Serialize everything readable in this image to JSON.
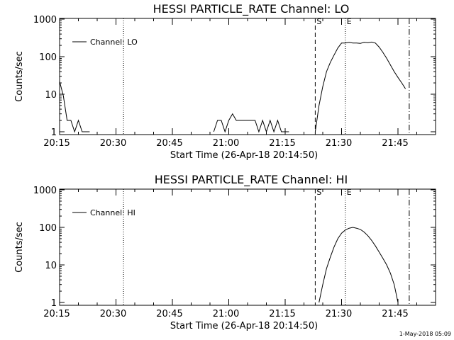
{
  "footer": {
    "timestamp": "1-May-2018 05:09"
  },
  "chart_data": [
    {
      "type": "line",
      "title": "HESSI PARTICLE_RATE Channel: LO",
      "xlabel": "Start Time (26-Apr-18 20:14:50)",
      "ylabel": "Counts/sec",
      "yscale": "log",
      "xlim": [
        "20:15",
        "21:55"
      ],
      "ylim": [
        1,
        1000
      ],
      "x_ticks": [
        "20:15",
        "20:30",
        "20:45",
        "21:00",
        "21:15",
        "21:30",
        "21:45"
      ],
      "y_ticks": [
        "1",
        "10",
        "100",
        "1000"
      ],
      "legend": {
        "position": "top-left",
        "entries": [
          "Channel: LO"
        ]
      },
      "markers": [
        {
          "label": "S",
          "time": "21:23",
          "style": "dashed"
        },
        {
          "label": "E",
          "time": "21:31",
          "style": "dotted"
        },
        {
          "label": "",
          "time": "20:32",
          "style": "dotted"
        },
        {
          "label": "",
          "time": "21:48",
          "style": "dashdot"
        }
      ],
      "series": [
        {
          "name": "Channel: LO",
          "x": [
            "20:15",
            "20:16",
            "20:17",
            "20:18",
            "20:19",
            "20:20",
            "20:21",
            "20:22",
            "20:23",
            "20:56",
            "20:57",
            "20:58",
            "20:59",
            "21:00",
            "21:01",
            "21:02",
            "21:03",
            "21:04",
            "21:05",
            "21:06",
            "21:07",
            "21:08",
            "21:09",
            "21:10",
            "21:11",
            "21:12",
            "21:13",
            "21:14",
            "21:15",
            "21:16",
            "21:23",
            "21:24",
            "21:25",
            "21:26",
            "21:27",
            "21:28",
            "21:29",
            "21:30",
            "21:31",
            "21:32",
            "21:33",
            "21:34",
            "21:35",
            "21:36",
            "21:37",
            "21:38",
            "21:39",
            "21:40",
            "21:41",
            "21:42",
            "21:43",
            "21:44",
            "21:45",
            "21:46",
            "21:47"
          ],
          "values": [
            22,
            9,
            2,
            2,
            1,
            2,
            1,
            1,
            1,
            1,
            2,
            2,
            1,
            2,
            3,
            2,
            2,
            2,
            2,
            2,
            2,
            1,
            2,
            1,
            2,
            1,
            2,
            1,
            1,
            1,
            1,
            5,
            16,
            40,
            70,
            110,
            170,
            230,
            230,
            240,
            230,
            230,
            225,
            240,
            235,
            245,
            230,
            180,
            130,
            90,
            60,
            40,
            28,
            20,
            14
          ]
        }
      ]
    },
    {
      "type": "line",
      "title": "HESSI PARTICLE_RATE Channel: HI",
      "xlabel": "Start Time (26-Apr-18 20:14:50)",
      "ylabel": "Counts/sec",
      "yscale": "log",
      "xlim": [
        "20:15",
        "21:55"
      ],
      "ylim": [
        1,
        1000
      ],
      "x_ticks": [
        "20:15",
        "20:30",
        "20:45",
        "21:00",
        "21:15",
        "21:30",
        "21:45"
      ],
      "y_ticks": [
        "1",
        "10",
        "100",
        "1000"
      ],
      "legend": {
        "position": "top-left",
        "entries": [
          "Channel: HI"
        ]
      },
      "markers": [
        {
          "label": "S",
          "time": "21:23",
          "style": "dashed"
        },
        {
          "label": "E",
          "time": "21:31",
          "style": "dotted"
        },
        {
          "label": "",
          "time": "20:32",
          "style": "dotted"
        },
        {
          "label": "",
          "time": "21:48",
          "style": "dashdot"
        }
      ],
      "series": [
        {
          "name": "Channel: HI",
          "x": [
            "21:24",
            "21:25",
            "21:26",
            "21:27",
            "21:28",
            "21:29",
            "21:30",
            "21:31",
            "21:32",
            "21:33",
            "21:34",
            "21:35",
            "21:36",
            "21:37",
            "21:38",
            "21:39",
            "21:40",
            "21:41",
            "21:42",
            "21:43",
            "21:44",
            "21:45"
          ],
          "values": [
            1,
            3,
            8,
            16,
            30,
            50,
            70,
            85,
            95,
            100,
            95,
            88,
            75,
            60,
            45,
            32,
            22,
            15,
            10,
            6,
            3,
            1
          ]
        }
      ]
    }
  ]
}
